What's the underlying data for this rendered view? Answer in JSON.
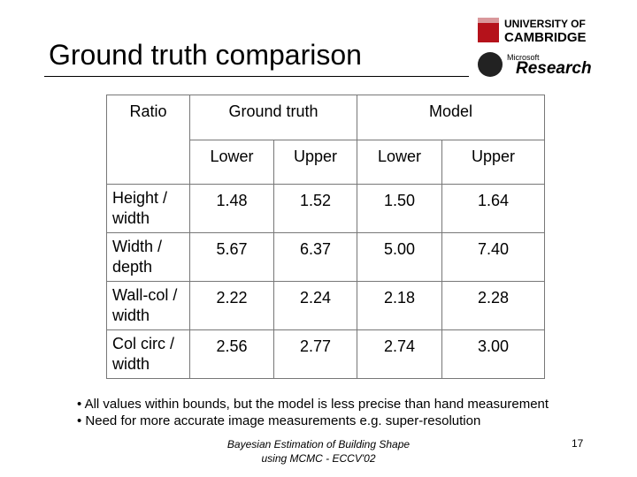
{
  "header": {
    "title": "Ground truth comparison",
    "logo_cambridge": [
      "UNIVERSITY OF",
      "CAMBRIDGE"
    ],
    "logo_microsoft": [
      "Microsoft",
      "Research"
    ]
  },
  "table": {
    "header_top": [
      "Ratio",
      "Ground  truth",
      "Model"
    ],
    "header_sub": [
      "Lower",
      "Upper",
      "Lower",
      "Upper"
    ],
    "rows": [
      [
        "Height / width",
        "1.48",
        "1.52",
        "1.50",
        "1.64"
      ],
      [
        "Width / depth",
        "5.67",
        "6.37",
        "5.00",
        "7.40"
      ],
      [
        "Wall-col / width",
        "2.22",
        "2.24",
        "2.18",
        "2.28"
      ],
      [
        "Col circ / width",
        "2.56",
        "2.77",
        "2.74",
        "3.00"
      ]
    ]
  },
  "bullets": [
    "• All values within bounds, but the model is less precise than hand measurement",
    "• Need for more accurate image measurements e.g. super-resolution"
  ],
  "footer": {
    "lines": [
      "Bayesian Estimation of Building Shape",
      "using MCMC - ECCV'02"
    ],
    "page_number": "17"
  }
}
